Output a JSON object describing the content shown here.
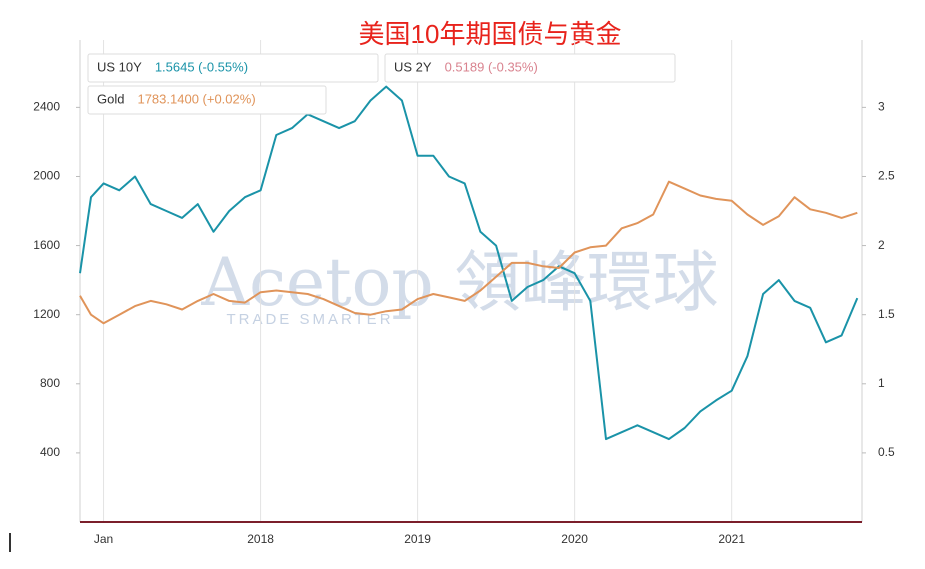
{
  "chart_data": {
    "type": "line",
    "title": "美国10年期国债与黄金",
    "watermark": {
      "brand": "Acetop 領峰環球",
      "tagline": "TRADE SMARTER"
    },
    "x": [
      2016.85,
      2016.92,
      2017.0,
      2017.1,
      2017.2,
      2017.3,
      2017.4,
      2017.5,
      2017.6,
      2017.7,
      2017.8,
      2017.9,
      2018.0,
      2018.1,
      2018.2,
      2018.3,
      2018.4,
      2018.5,
      2018.6,
      2018.7,
      2018.8,
      2018.9,
      2019.0,
      2019.1,
      2019.2,
      2019.3,
      2019.4,
      2019.5,
      2019.6,
      2019.7,
      2019.8,
      2019.9,
      2020.0,
      2020.1,
      2020.2,
      2020.3,
      2020.4,
      2020.5,
      2020.6,
      2020.7,
      2020.8,
      2020.9,
      2021.0,
      2021.1,
      2021.2,
      2021.3,
      2021.4,
      2021.5,
      2021.6,
      2021.7,
      2021.8
    ],
    "series": [
      {
        "name": "US 10Y",
        "label": "1.5645 (-0.55%)",
        "color": "#1a93a8",
        "axis": "y2",
        "values": [
          1.8,
          2.35,
          2.45,
          2.4,
          2.5,
          2.3,
          2.25,
          2.2,
          2.3,
          2.1,
          2.25,
          2.35,
          2.4,
          2.8,
          2.85,
          2.95,
          2.9,
          2.85,
          2.9,
          3.05,
          3.15,
          3.05,
          2.65,
          2.65,
          2.5,
          2.45,
          2.1,
          2.0,
          1.6,
          1.7,
          1.75,
          1.85,
          1.8,
          1.6,
          0.6,
          0.65,
          0.7,
          0.65,
          0.6,
          0.68,
          0.8,
          0.88,
          0.95,
          1.2,
          1.65,
          1.75,
          1.6,
          1.55,
          1.3,
          1.35,
          1.62
        ]
      },
      {
        "name": "Gold",
        "label": "1783.1400 (+0.02%)",
        "color": "#e0945a",
        "values": [
          1310,
          1200,
          1150,
          1200,
          1250,
          1280,
          1260,
          1230,
          1280,
          1320,
          1280,
          1270,
          1330,
          1340,
          1330,
          1320,
          1290,
          1250,
          1210,
          1200,
          1220,
          1230,
          1290,
          1320,
          1300,
          1280,
          1340,
          1420,
          1500,
          1500,
          1480,
          1470,
          1560,
          1590,
          1600,
          1700,
          1730,
          1780,
          1970,
          1930,
          1890,
          1870,
          1860,
          1780,
          1720,
          1770,
          1880,
          1810,
          1790,
          1760,
          1790
        ]
      }
    ],
    "legend_only": [
      {
        "name": "US 2Y",
        "label": "0.5189 (-0.35%)",
        "color": "#d9838f"
      }
    ],
    "xlim": [
      2016.85,
      2021.83
    ],
    "xticks": [
      {
        "value": 2017,
        "label": "Jan"
      },
      2018,
      2019,
      2020,
      2021
    ],
    "ylim": [
      0,
      2790
    ],
    "yticks": [
      400,
      800,
      1200,
      1600,
      2000,
      2400
    ],
    "y2lim": [
      0,
      3.4875
    ],
    "y2ticks": [
      0.5,
      1,
      1.5,
      2,
      2.5,
      3
    ],
    "grid": true
  }
}
